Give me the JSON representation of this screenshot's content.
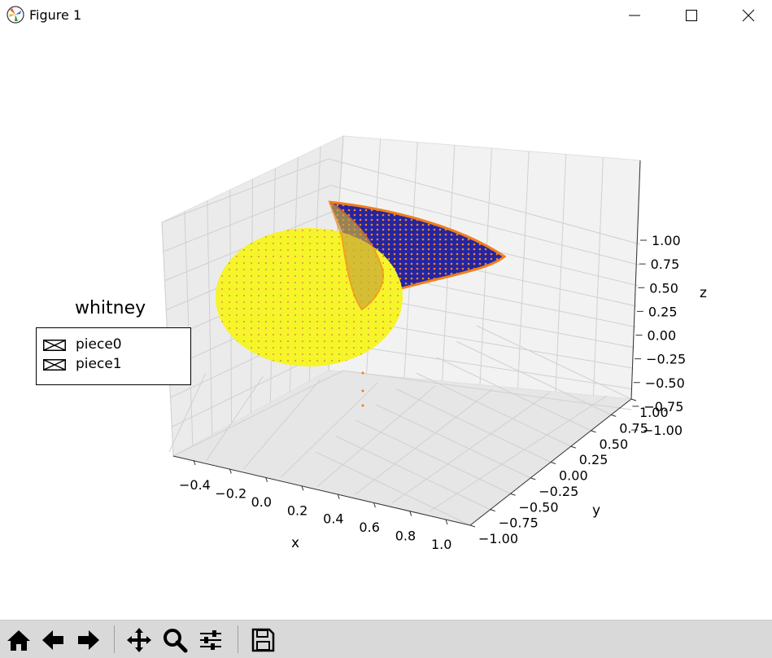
{
  "window": {
    "title": "Figure 1",
    "app_icon": "matplotlib-icon",
    "controls": [
      "minimize-icon",
      "maximize-icon",
      "close-icon"
    ]
  },
  "legend": {
    "title": "whitney",
    "entries": [
      {
        "label": "piece0",
        "icon": "legend-cross-box-icon"
      },
      {
        "label": "piece1",
        "icon": "legend-cross-box-icon"
      }
    ]
  },
  "chart_data": {
    "type": "scatter",
    "projection": "3d",
    "xlabel": "x",
    "ylabel": "y",
    "zlabel": "z",
    "xticks": [
      "−0.4",
      "−0.2",
      "0.0",
      "0.2",
      "0.4",
      "0.6",
      "0.8",
      "1.0"
    ],
    "yticks": [
      "−1.00",
      "−0.75",
      "−0.50",
      "−0.25",
      "0.00",
      "0.25",
      "0.50",
      "0.75",
      "1.00"
    ],
    "zticks": [
      "−1.00",
      "−0.75",
      "−0.50",
      "−0.25",
      "0.00",
      "0.25",
      "0.50",
      "0.75",
      "1.00"
    ],
    "xlim": [
      -0.5,
      1.0
    ],
    "ylim": [
      -1.0,
      1.0
    ],
    "zlim": [
      -1.0,
      1.0
    ],
    "grid": true,
    "series_colors": {
      "surface_a": "#1a1a9e",
      "surface_b": "#f5f52a",
      "points": "#f07f1a"
    }
  },
  "toolbar": {
    "tools": [
      {
        "name": "home-icon"
      },
      {
        "name": "back-icon"
      },
      {
        "name": "forward-icon"
      },
      {
        "name": "pan-icon"
      },
      {
        "name": "zoom-icon"
      },
      {
        "name": "configure-subplots-icon"
      },
      {
        "name": "save-icon"
      }
    ]
  }
}
